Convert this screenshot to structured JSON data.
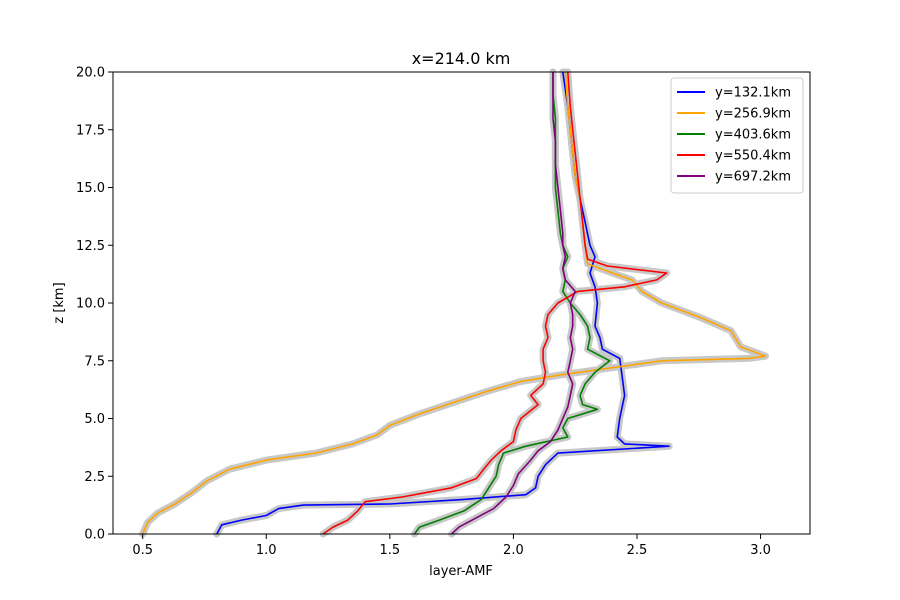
{
  "chart_data": {
    "type": "line",
    "title": "x=214.0 km",
    "xlabel": "layer-AMF",
    "ylabel": "z [km]",
    "xlim": [
      0.38,
      3.2
    ],
    "ylim": [
      0,
      20
    ],
    "xticks": [
      "0.5",
      "1.0",
      "1.5",
      "2.0",
      "2.5",
      "3.0"
    ],
    "yticks": [
      "0.0",
      "2.5",
      "5.0",
      "7.5",
      "10.0",
      "12.5",
      "15.0",
      "17.5",
      "20.0"
    ],
    "legend_position": "top-right",
    "uncertainty_band_color": "#c8c8c8",
    "series": [
      {
        "name": "y=132.1km",
        "color": "#0000ff",
        "points": [
          [
            0.8,
            0.0
          ],
          [
            0.82,
            0.4
          ],
          [
            0.9,
            0.6
          ],
          [
            1.0,
            0.8
          ],
          [
            1.05,
            1.1
          ],
          [
            1.15,
            1.25
          ],
          [
            1.5,
            1.3
          ],
          [
            1.8,
            1.5
          ],
          [
            2.05,
            1.7
          ],
          [
            2.09,
            2.0
          ],
          [
            2.1,
            2.5
          ],
          [
            2.13,
            3.0
          ],
          [
            2.18,
            3.5
          ],
          [
            2.63,
            3.8
          ],
          [
            2.45,
            3.9
          ],
          [
            2.42,
            4.2
          ],
          [
            2.43,
            5.0
          ],
          [
            2.45,
            6.0
          ],
          [
            2.44,
            6.8
          ],
          [
            2.43,
            7.6
          ],
          [
            2.36,
            8.0
          ],
          [
            2.35,
            8.5
          ],
          [
            2.33,
            9.0
          ],
          [
            2.34,
            10.0
          ],
          [
            2.33,
            10.7
          ],
          [
            2.31,
            11.3
          ],
          [
            2.33,
            12.0
          ],
          [
            2.31,
            12.5
          ],
          [
            2.29,
            13.5
          ],
          [
            2.27,
            14.5
          ],
          [
            2.25,
            15.5
          ],
          [
            2.24,
            16.5
          ],
          [
            2.23,
            17.5
          ],
          [
            2.22,
            18.5
          ],
          [
            2.2,
            20.0
          ]
        ]
      },
      {
        "name": "y=256.9km",
        "color": "#ffa500",
        "points": [
          [
            0.5,
            0.0
          ],
          [
            0.52,
            0.5
          ],
          [
            0.56,
            0.9
          ],
          [
            0.63,
            1.3
          ],
          [
            0.7,
            1.8
          ],
          [
            0.76,
            2.3
          ],
          [
            0.85,
            2.8
          ],
          [
            1.0,
            3.2
          ],
          [
            1.2,
            3.5
          ],
          [
            1.35,
            3.9
          ],
          [
            1.45,
            4.3
          ],
          [
            1.5,
            4.7
          ],
          [
            1.62,
            5.2
          ],
          [
            1.76,
            5.7
          ],
          [
            1.9,
            6.2
          ],
          [
            2.03,
            6.6
          ],
          [
            2.2,
            6.9
          ],
          [
            2.4,
            7.2
          ],
          [
            2.6,
            7.5
          ],
          [
            2.95,
            7.6
          ],
          [
            3.02,
            7.7
          ],
          [
            2.92,
            8.1
          ],
          [
            2.88,
            8.8
          ],
          [
            2.75,
            9.4
          ],
          [
            2.6,
            10.0
          ],
          [
            2.52,
            10.5
          ],
          [
            2.48,
            11.0
          ],
          [
            2.4,
            11.3
          ],
          [
            2.3,
            11.7
          ],
          [
            2.29,
            12.5
          ],
          [
            2.28,
            13.5
          ],
          [
            2.27,
            14.5
          ],
          [
            2.25,
            15.5
          ],
          [
            2.24,
            16.5
          ],
          [
            2.23,
            17.5
          ],
          [
            2.22,
            18.5
          ],
          [
            2.21,
            20.0
          ]
        ]
      },
      {
        "name": "y=403.6km",
        "color": "#008000",
        "points": [
          [
            1.6,
            0.0
          ],
          [
            1.62,
            0.3
          ],
          [
            1.7,
            0.6
          ],
          [
            1.8,
            1.0
          ],
          [
            1.87,
            1.5
          ],
          [
            1.9,
            2.0
          ],
          [
            1.93,
            2.5
          ],
          [
            1.94,
            3.0
          ],
          [
            1.96,
            3.5
          ],
          [
            2.05,
            3.8
          ],
          [
            2.22,
            4.2
          ],
          [
            2.2,
            4.6
          ],
          [
            2.22,
            5.0
          ],
          [
            2.34,
            5.4
          ],
          [
            2.28,
            5.6
          ],
          [
            2.27,
            6.0
          ],
          [
            2.29,
            6.5
          ],
          [
            2.33,
            7.0
          ],
          [
            2.39,
            7.5
          ],
          [
            2.3,
            8.0
          ],
          [
            2.31,
            8.5
          ],
          [
            2.3,
            9.0
          ],
          [
            2.27,
            9.5
          ],
          [
            2.23,
            10.0
          ],
          [
            2.2,
            10.5
          ],
          [
            2.21,
            11.0
          ],
          [
            2.2,
            11.5
          ],
          [
            2.22,
            12.0
          ],
          [
            2.2,
            12.5
          ],
          [
            2.19,
            13.0
          ],
          [
            2.18,
            14.0
          ],
          [
            2.17,
            15.0
          ],
          [
            2.17,
            16.0
          ],
          [
            2.17,
            17.0
          ],
          [
            2.17,
            18.0
          ],
          [
            2.16,
            19.0
          ],
          [
            2.16,
            20.0
          ]
        ]
      },
      {
        "name": "y=550.4km",
        "color": "#ff0000",
        "points": [
          [
            1.23,
            0.0
          ],
          [
            1.27,
            0.3
          ],
          [
            1.33,
            0.6
          ],
          [
            1.37,
            1.0
          ],
          [
            1.4,
            1.4
          ],
          [
            1.55,
            1.6
          ],
          [
            1.75,
            2.0
          ],
          [
            1.85,
            2.4
          ],
          [
            1.88,
            2.8
          ],
          [
            1.91,
            3.2
          ],
          [
            1.95,
            3.6
          ],
          [
            2.0,
            4.0
          ],
          [
            2.01,
            4.5
          ],
          [
            2.03,
            5.0
          ],
          [
            2.1,
            5.6
          ],
          [
            2.07,
            6.0
          ],
          [
            2.12,
            6.5
          ],
          [
            2.13,
            7.0
          ],
          [
            2.12,
            7.5
          ],
          [
            2.12,
            8.0
          ],
          [
            2.14,
            8.5
          ],
          [
            2.13,
            9.0
          ],
          [
            2.14,
            9.5
          ],
          [
            2.18,
            10.0
          ],
          [
            2.26,
            10.5
          ],
          [
            2.45,
            10.7
          ],
          [
            2.58,
            11.0
          ],
          [
            2.62,
            11.3
          ],
          [
            2.38,
            11.6
          ],
          [
            2.3,
            11.9
          ],
          [
            2.29,
            12.5
          ],
          [
            2.28,
            13.5
          ],
          [
            2.27,
            14.5
          ],
          [
            2.26,
            15.5
          ],
          [
            2.25,
            16.5
          ],
          [
            2.24,
            17.5
          ],
          [
            2.23,
            18.5
          ],
          [
            2.22,
            20.0
          ]
        ]
      },
      {
        "name": "y=697.2km",
        "color": "#800080",
        "points": [
          [
            1.75,
            0.0
          ],
          [
            1.78,
            0.3
          ],
          [
            1.85,
            0.7
          ],
          [
            1.92,
            1.1
          ],
          [
            1.97,
            1.6
          ],
          [
            2.0,
            2.1
          ],
          [
            2.02,
            2.6
          ],
          [
            2.07,
            3.2
          ],
          [
            2.1,
            3.6
          ],
          [
            2.15,
            4.0
          ],
          [
            2.18,
            4.5
          ],
          [
            2.2,
            5.0
          ],
          [
            2.22,
            5.5
          ],
          [
            2.23,
            6.0
          ],
          [
            2.24,
            6.5
          ],
          [
            2.22,
            7.0
          ],
          [
            2.23,
            7.5
          ],
          [
            2.24,
            8.0
          ],
          [
            2.23,
            8.5
          ],
          [
            2.24,
            9.0
          ],
          [
            2.24,
            9.5
          ],
          [
            2.23,
            10.0
          ],
          [
            2.25,
            10.5
          ],
          [
            2.21,
            11.0
          ],
          [
            2.2,
            11.5
          ],
          [
            2.21,
            12.0
          ],
          [
            2.2,
            12.5
          ],
          [
            2.2,
            13.0
          ],
          [
            2.19,
            14.0
          ],
          [
            2.18,
            15.0
          ],
          [
            2.17,
            16.0
          ],
          [
            2.17,
            17.0
          ],
          [
            2.16,
            18.0
          ],
          [
            2.16,
            19.0
          ],
          [
            2.16,
            20.0
          ]
        ]
      }
    ]
  }
}
